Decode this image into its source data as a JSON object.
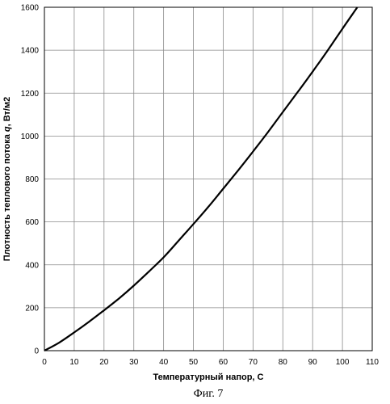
{
  "chart_data": {
    "type": "line",
    "title": "",
    "xlabel": "Температурный напор, С",
    "ylabel_text": "Плотность теплового потока ",
    "ylabel_symbol": "q",
    "ylabel_unit": ", Вт/м2",
    "caption": "Фиг. 7",
    "xlim": [
      0,
      110
    ],
    "ylim": [
      0,
      1600
    ],
    "x_ticks": [
      0,
      10,
      20,
      30,
      40,
      50,
      60,
      70,
      80,
      90,
      100,
      110
    ],
    "y_ticks": [
      0,
      200,
      400,
      600,
      800,
      1000,
      1200,
      1400,
      1600
    ],
    "grid": true,
    "series": [
      {
        "x": [
          0,
          5,
          10,
          15,
          20,
          25,
          30,
          35,
          40,
          45,
          50,
          55,
          60,
          65,
          70,
          75,
          80,
          85,
          90,
          95,
          100,
          105
        ],
        "y": [
          0,
          38,
          85,
          135,
          188,
          243,
          303,
          368,
          435,
          512,
          590,
          670,
          755,
          840,
          928,
          1018,
          1112,
          1205,
          1300,
          1398,
          1500,
          1600
        ]
      }
    ]
  }
}
